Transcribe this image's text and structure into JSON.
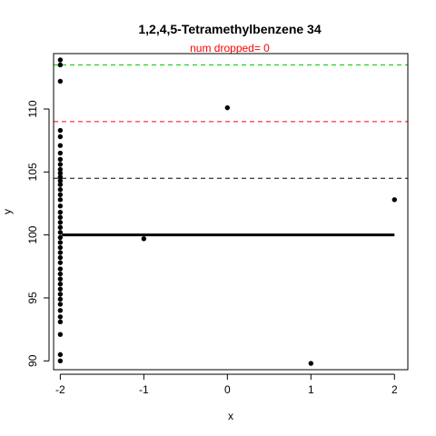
{
  "chart_data": {
    "type": "scatter",
    "title": "1,2,4,5-Tetramethylbenzene 34",
    "subtitle": "num dropped= 0",
    "xlabel": "x",
    "ylabel": "y",
    "xlim": [
      -2.08,
      2.16
    ],
    "ylim": [
      89.3,
      114.4
    ],
    "x_ticks": [
      -2,
      -1,
      0,
      1,
      2
    ],
    "x_tick_labels": [
      "-2",
      "-1",
      "0",
      "1",
      "2"
    ],
    "y_ticks": [
      90,
      95,
      100,
      105,
      110
    ],
    "y_tick_labels": [
      "90",
      "95",
      "100",
      "105",
      "110"
    ],
    "grid": false,
    "reference_lines": [
      {
        "y": 113.5,
        "color": "#00cc00",
        "style": "dashed"
      },
      {
        "y": 109.0,
        "color": "#ff0000",
        "style": "dashed"
      },
      {
        "y": 104.5,
        "color": "#000000",
        "style": "dashed"
      }
    ],
    "dense_line": {
      "x_start": -1.98,
      "x_end": 2.0,
      "y": 100.0
    },
    "points": [
      {
        "x": -2,
        "y": 113.9
      },
      {
        "x": -2,
        "y": 113.5
      },
      {
        "x": -2,
        "y": 112.2
      },
      {
        "x": -2,
        "y": 108.3
      },
      {
        "x": -2,
        "y": 107.8
      },
      {
        "x": -2,
        "y": 107.1
      },
      {
        "x": -2,
        "y": 106.5
      },
      {
        "x": -2,
        "y": 106.0
      },
      {
        "x": -2,
        "y": 105.6
      },
      {
        "x": -2,
        "y": 105.2
      },
      {
        "x": -2,
        "y": 104.9
      },
      {
        "x": -2,
        "y": 104.6
      },
      {
        "x": -2,
        "y": 104.3
      },
      {
        "x": -2,
        "y": 104.0
      },
      {
        "x": -2,
        "y": 103.6
      },
      {
        "x": -2,
        "y": 103.2
      },
      {
        "x": -2,
        "y": 102.8
      },
      {
        "x": -2,
        "y": 102.3
      },
      {
        "x": -2,
        "y": 101.8
      },
      {
        "x": -2,
        "y": 101.4
      },
      {
        "x": -2,
        "y": 101.0
      },
      {
        "x": -2,
        "y": 100.6
      },
      {
        "x": -2,
        "y": 100.2
      },
      {
        "x": -2,
        "y": 99.8
      },
      {
        "x": -2,
        "y": 99.4
      },
      {
        "x": -2,
        "y": 99.0
      },
      {
        "x": -2,
        "y": 98.6
      },
      {
        "x": -2,
        "y": 98.2
      },
      {
        "x": -2,
        "y": 97.8
      },
      {
        "x": -2,
        "y": 97.3
      },
      {
        "x": -2,
        "y": 96.9
      },
      {
        "x": -2,
        "y": 96.5
      },
      {
        "x": -2,
        "y": 96.1
      },
      {
        "x": -2,
        "y": 95.7
      },
      {
        "x": -2,
        "y": 95.3
      },
      {
        "x": -2,
        "y": 94.9
      },
      {
        "x": -2,
        "y": 94.5
      },
      {
        "x": -2,
        "y": 94.0
      },
      {
        "x": -2,
        "y": 93.5
      },
      {
        "x": -2,
        "y": 93.1
      },
      {
        "x": -2,
        "y": 92.1
      },
      {
        "x": -2,
        "y": 90.5
      },
      {
        "x": -2,
        "y": 90.0
      },
      {
        "x": -1,
        "y": 99.7
      },
      {
        "x": 0,
        "y": 110.1
      },
      {
        "x": 1,
        "y": 89.8
      },
      {
        "x": 2,
        "y": 102.8
      }
    ]
  }
}
